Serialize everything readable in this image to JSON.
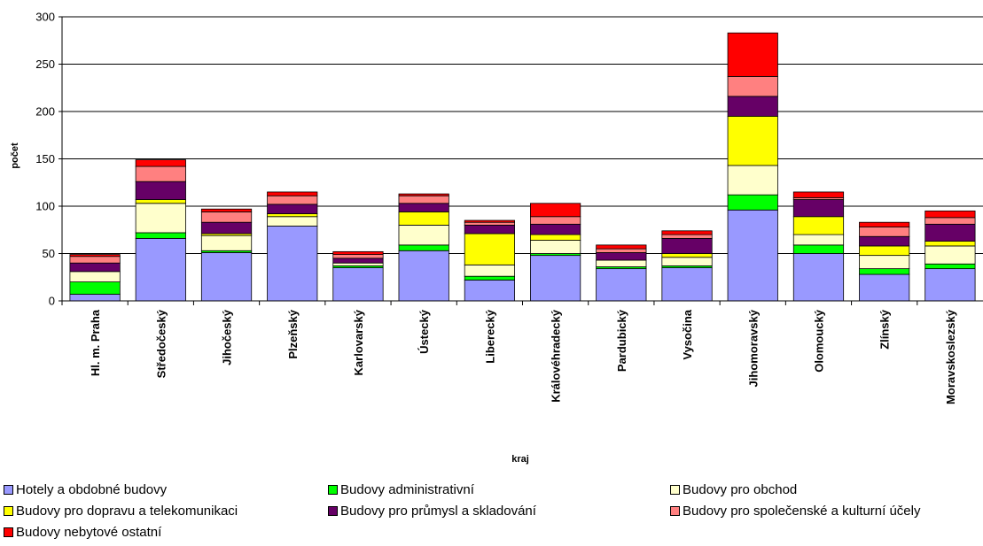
{
  "chart_data": {
    "type": "bar",
    "stacked": true,
    "xlabel": "kraj",
    "ylabel": "počet",
    "ylim": [
      0,
      300
    ],
    "yticks": [
      0,
      50,
      100,
      150,
      200,
      250,
      300
    ],
    "grid": true,
    "legend_position": "bottom",
    "categories": [
      "Hl. m. Praha",
      "Středočeský",
      "Jihočeský",
      "Plzeňský",
      "Karlovarský",
      "Ústecký",
      "Liberecký",
      "Královéhradecký",
      "Pardubický",
      "Vysočina",
      "Jihomoravský",
      "Olomoucký",
      "Zlínský",
      "Moravskoslezský"
    ],
    "series": [
      {
        "name": "Hotely a obdobné budovy",
        "color": "#9999ff",
        "values": [
          7,
          66,
          51,
          79,
          35,
          53,
          22,
          48,
          34,
          35,
          96,
          50,
          28,
          34
        ]
      },
      {
        "name": "Budovy administrativní",
        "color": "#00ff00",
        "values": [
          13,
          6,
          2,
          0,
          2,
          6,
          4,
          2,
          2,
          2,
          16,
          9,
          6,
          5
        ]
      },
      {
        "name": "Budovy pro obchod",
        "color": "#ffffcc",
        "values": [
          11,
          31,
          16,
          10,
          3,
          21,
          12,
          14,
          7,
          9,
          31,
          11,
          14,
          19
        ]
      },
      {
        "name": "Budovy pro dopravu a telekomunikaci",
        "color": "#ffff00",
        "values": [
          0,
          4,
          2,
          3,
          0,
          14,
          33,
          6,
          0,
          4,
          52,
          19,
          10,
          5
        ]
      },
      {
        "name": "Budovy pro průmysl a skladování",
        "color": "#660066",
        "values": [
          9,
          19,
          12,
          10,
          5,
          9,
          9,
          11,
          8,
          16,
          21,
          18,
          10,
          18
        ]
      },
      {
        "name": "Budovy pro společenské a kulturní účely",
        "color": "#ff8080",
        "values": [
          7,
          16,
          11,
          9,
          4,
          8,
          3,
          8,
          4,
          4,
          21,
          2,
          10,
          7
        ]
      },
      {
        "name": "Budovy nebytové ostatní",
        "color": "#ff0000",
        "values": [
          2,
          7,
          3,
          4,
          3,
          2,
          2,
          14,
          4,
          4,
          46,
          6,
          5,
          7
        ]
      }
    ]
  }
}
